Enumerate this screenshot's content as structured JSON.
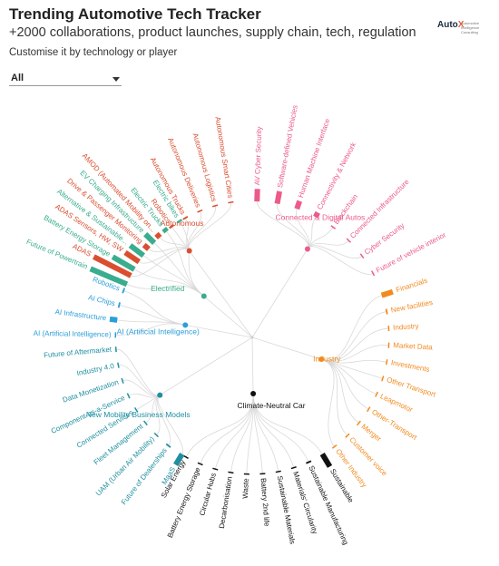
{
  "header": {
    "title": "Trending Automotive Tech Tracker",
    "subtitle": "+2000 collaborations, product launches, supply chain, tech, regulation",
    "note": "Customise it by technology or player",
    "logo_text_a": "Auto",
    "logo_text_b": "X",
    "logo_sub": "Automotive Intelligence Consulting"
  },
  "filter": {
    "selected": "All"
  },
  "chart_data": {
    "type": "radial-dendrogram",
    "groups": [
      {
        "name": "Autonomous",
        "color": "#d94f30",
        "leaves": [
          {
            "label": "ADAS",
            "value": 1.0
          },
          {
            "label": "ADAS Sensors, HW, SW",
            "value": 0.4
          },
          {
            "label": "Drive & Passenger Monitoring",
            "value": 0.15
          },
          {
            "label": "AMOD (Automated Mobility on...",
            "value": 0.12
          },
          {
            "label": "Robotics",
            "value": 0.05
          },
          {
            "label": "Autonomous Trucks",
            "value": 0.04
          },
          {
            "label": "Autonomous Deliveries",
            "value": 0.03
          },
          {
            "label": "Autonomous Logistics",
            "value": 0.02
          },
          {
            "label": "Autonomous Smart Cities",
            "value": 0.02
          }
        ]
      },
      {
        "name": "Connected & Digital Autos",
        "color": "#ec5b88",
        "leaves": [
          {
            "label": "AV Cyber Security",
            "value": 0.3
          },
          {
            "label": "Software-defined Vehicles",
            "value": 0.3
          },
          {
            "label": "Human Machine Interface",
            "value": 0.2
          },
          {
            "label": "Connectivity & Network",
            "value": 0.12
          },
          {
            "label": "Blockchain",
            "value": 0.03
          },
          {
            "label": "Connected Infrastructure",
            "value": 0.02
          },
          {
            "label": "Cyber Security",
            "value": 0.02
          },
          {
            "label": "Future of vehicle interior",
            "value": 0.02
          }
        ]
      },
      {
        "name": "Industry",
        "color": "#f28a1e",
        "leaves": [
          {
            "label": "Financials",
            "value": 0.28
          },
          {
            "label": "New facilities",
            "value": 0.04
          },
          {
            "label": "Industry",
            "value": 0.03
          },
          {
            "label": "Market Data",
            "value": 0.03
          },
          {
            "label": "Investments",
            "value": 0.03
          },
          {
            "label": "Other Transport",
            "value": 0.03
          },
          {
            "label": "Leapmotor",
            "value": 0.02
          },
          {
            "label": "Other-Transport",
            "value": 0.02
          },
          {
            "label": "Merger",
            "value": 0.02
          },
          {
            "label": "Customer voice",
            "value": 0.02
          },
          {
            "label": "Other Industry",
            "value": 0.02
          }
        ]
      },
      {
        "name": "Climate-Neutral Car",
        "color": "#111111",
        "leaves": [
          {
            "label": "Sustainable",
            "value": 0.35
          },
          {
            "label": "Sustainable Manufacturing",
            "value": 0.04
          },
          {
            "label": "Materials' Circularity",
            "value": 0.03
          },
          {
            "label": "Sustainable Materials",
            "value": 0.03
          },
          {
            "label": "Battery 2nd life",
            "value": 0.03
          },
          {
            "label": "Waste",
            "value": 0.02
          },
          {
            "label": "Decarbonisation",
            "value": 0.03
          },
          {
            "label": "Circular Hubs",
            "value": 0.02
          },
          {
            "label": "Battery Energy Storage",
            "value": 0.02
          },
          {
            "label": "Solar Energy",
            "value": 0.02
          }
        ]
      },
      {
        "name": "New Mobility Business Models",
        "color": "#1f8fa0",
        "leaves": [
          {
            "label": "MaaS",
            "value": 0.3
          },
          {
            "label": "Future of Dealerships",
            "value": 0.04
          },
          {
            "label": "UAM (Urban Air Mobility)",
            "value": 0.03
          },
          {
            "label": "Fleet Management",
            "value": 0.03
          },
          {
            "label": "Connected Services",
            "value": 0.03
          },
          {
            "label": "Component-as-a-Service",
            "value": 0.03
          },
          {
            "label": "Data Monetization",
            "value": 0.03
          },
          {
            "label": "Industry 4.0",
            "value": 0.03
          },
          {
            "label": "Future of Aftermarket",
            "value": 0.03
          }
        ]
      },
      {
        "name": "AI (Artificial Intelligence)",
        "color": "#2c9fd9",
        "leaves": [
          {
            "label": "AI (Artificial Intelligence)",
            "value": 0.03
          },
          {
            "label": "AI Infrastructure",
            "value": 0.18
          },
          {
            "label": "AI Chips",
            "value": 0.04
          },
          {
            "label": "Robotics",
            "value": 0.04
          }
        ]
      },
      {
        "name": "Electrified",
        "color": "#3aad8e",
        "leaves": [
          {
            "label": "Future of Powertrain",
            "value": 0.95
          },
          {
            "label": "Battery Energy Storage",
            "value": 0.6
          },
          {
            "label": "Alternative & Sustainable...",
            "value": 0.4
          },
          {
            "label": "EV Charging Infrastructure",
            "value": 0.3
          },
          {
            "label": "Electric Trucks",
            "value": 0.1
          },
          {
            "label": "Electric bikes",
            "value": 0.05
          }
        ]
      }
    ]
  }
}
